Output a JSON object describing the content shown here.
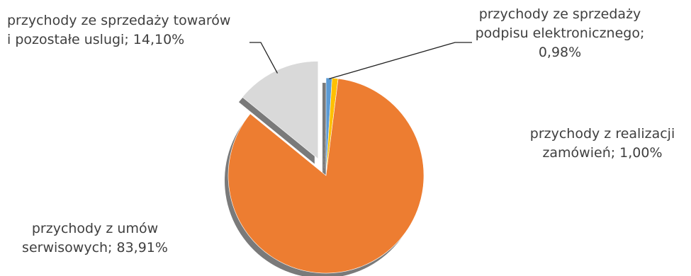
{
  "chart_data": {
    "type": "pie",
    "slices": [
      {
        "label_lines": [
          "przychody ze sprzedaży",
          "podpisu elektronicznego;",
          "0,98%"
        ],
        "value": 0.98,
        "color": "#5b9bd5",
        "exploded": false
      },
      {
        "label_lines": [
          "przychody z realizacji",
          "zamówień; 1,00%"
        ],
        "value": 1.0,
        "color": "#ffc000",
        "exploded": false
      },
      {
        "label_lines": [
          "przychody z umów",
          "serwisowych; 83,91%"
        ],
        "value": 83.91,
        "color": "#ed7d31",
        "exploded": false
      },
      {
        "label_lines": [
          "przychody ze sprzedaży towarów",
          "i pozostałe uslugi; 14,10%"
        ],
        "value": 14.1,
        "color": "#d9d9d9",
        "exploded": true
      }
    ],
    "start_angle": "12 o'clock",
    "direction": "clockwise",
    "legend": "none",
    "style": "3d-shadowed"
  }
}
